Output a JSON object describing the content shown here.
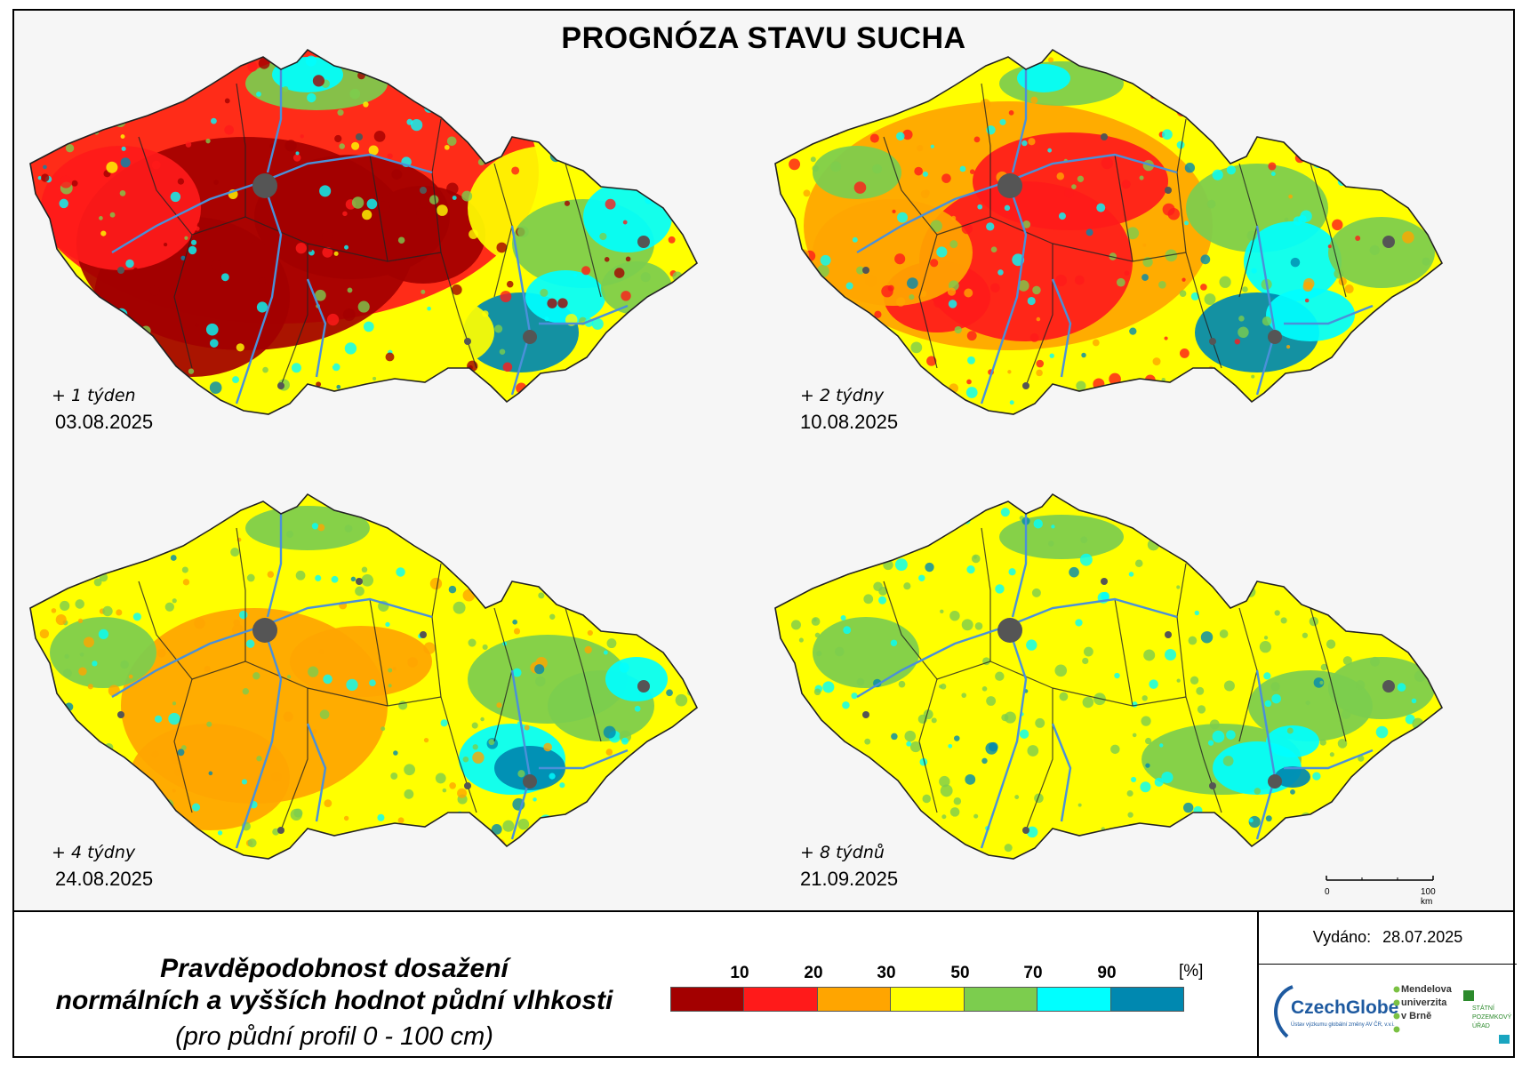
{
  "title": "PROGNÓZA STAVU SUCHA",
  "panels": [
    {
      "label": "+ 1 týden",
      "date": "03.08.2025",
      "dominant_levels": [
        "10",
        "20",
        "50",
        "90",
        "70"
      ]
    },
    {
      "label": "+ 2 týdny",
      "date": "10.08.2025",
      "dominant_levels": [
        "50",
        "30",
        "20",
        "70",
        "90"
      ]
    },
    {
      "label": "+ 4 týdny",
      "date": "24.08.2025",
      "dominant_levels": [
        "50",
        "30",
        "70",
        "90"
      ]
    },
    {
      "label": "+ 8 týdnů",
      "date": "21.09.2025",
      "dominant_levels": [
        "50",
        "70",
        "90"
      ]
    }
  ],
  "scale": {
    "start": "0",
    "end": "100 km"
  },
  "legend": {
    "title_line1": "Pravděpodobnost dosažení",
    "title_line2": "normálních a vyšších hodnot půdní vlhkosti",
    "subtitle": "(pro půdní profil 0 - 100 cm)",
    "unit": "[%]",
    "ticks": [
      "10",
      "20",
      "30",
      "50",
      "70",
      "90"
    ],
    "colors": [
      "#a30000",
      "#ff1a1a",
      "#ffa500",
      "#ffff00",
      "#7ccd4e",
      "#00ffff",
      "#0088b0"
    ]
  },
  "colors": {
    "river": "#4a90d9",
    "city": "#555555",
    "border": "#222222"
  },
  "issued": {
    "label": "Vydáno:",
    "date": "28.07.2025"
  },
  "logos": {
    "czechglobe": "CzechGlobe",
    "czechglobe_sub": "Ústav výzkumu globální změny AV ČR, v.v.i.",
    "mendelu": [
      "Mendelova",
      "univerzita",
      "v Brně"
    ],
    "spu": [
      "STÁTNÍ",
      "POZEMKOVÝ",
      "ÚŘAD"
    ]
  }
}
